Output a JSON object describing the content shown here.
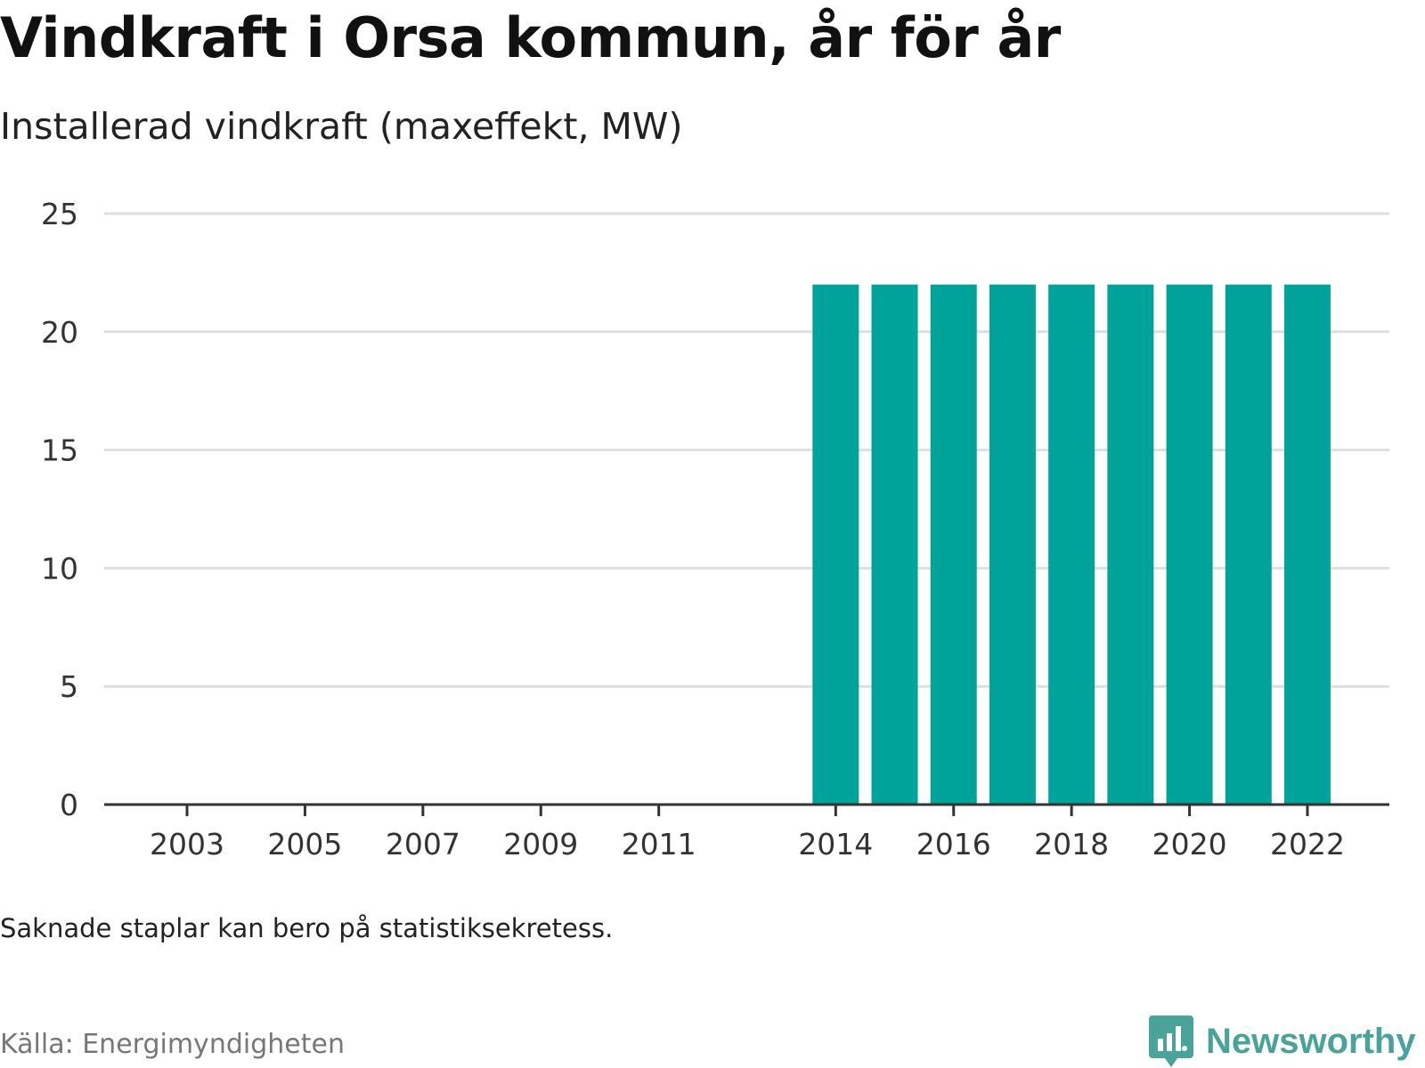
{
  "title": "Vindkraft i Orsa kommun, år för år",
  "subtitle": "Installerad vindkraft (maxeffekt, MW)",
  "note": "Saknade staplar kan bero på statistiksekretess.",
  "source": "Källa: Energimyndigheten",
  "brand": {
    "name": "Newsworthy",
    "icon": "newsworthy-logo-icon",
    "color": "#4aa399"
  },
  "chart_data": {
    "type": "bar",
    "title": "Vindkraft i Orsa kommun, år för år",
    "subtitle": "Installerad vindkraft (maxeffekt, MW)",
    "xlabel": "",
    "ylabel": "",
    "x_ticks": [
      "2003",
      "2005",
      "2007",
      "2009",
      "2011",
      "2014",
      "2016",
      "2018",
      "2020",
      "2022"
    ],
    "y_ticks": [
      0,
      5,
      10,
      15,
      20,
      25
    ],
    "ylim": [
      0,
      25
    ],
    "grid": true,
    "bar_color": "#00a39a",
    "categories": [
      "2014",
      "2015",
      "2016",
      "2017",
      "2018",
      "2019",
      "2020",
      "2021",
      "2022"
    ],
    "values": [
      22,
      22,
      22,
      22,
      22,
      22,
      22,
      22,
      22
    ]
  }
}
